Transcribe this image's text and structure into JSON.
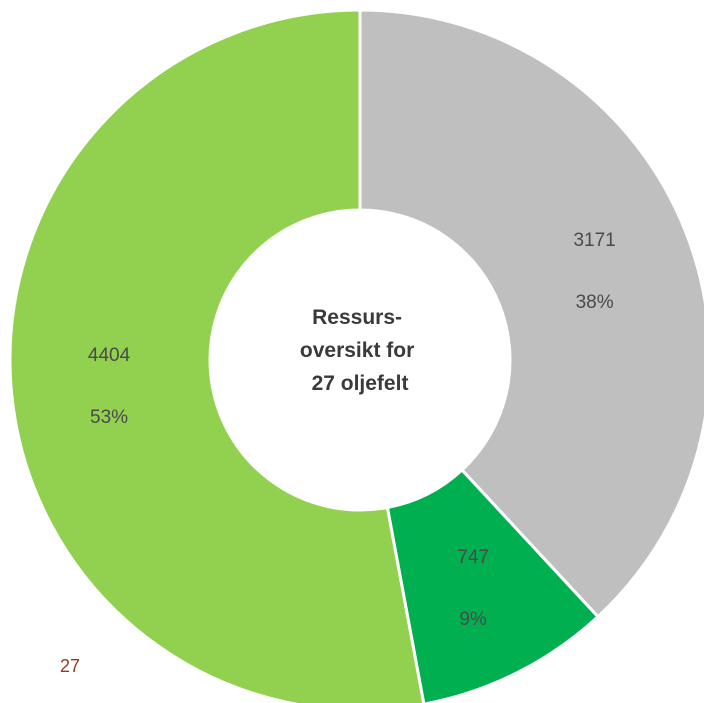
{
  "chart_data": {
    "type": "pie",
    "variant": "donut",
    "center_title_lines": [
      "Ressurs-",
      "oversikt for",
      "27 oljefelt"
    ],
    "slices": [
      {
        "value": 3171,
        "value_label": "3171",
        "percent_label": "38%",
        "color": "#bfbfbf"
      },
      {
        "value": 747,
        "value_label": "747",
        "percent_label": "9%",
        "color": "#00b050"
      },
      {
        "value": 4404,
        "value_label": "4404",
        "percent_label": "53%",
        "color": "#92d050"
      }
    ],
    "start_angle": "12 o'clock",
    "direction": "clockwise",
    "legend": "none"
  },
  "page_number": "27",
  "colors": {
    "background": "#ffffff",
    "label_text": "#4a4a4a",
    "center_text": "#3a3a3a",
    "page_number": "#9a3a1a"
  }
}
